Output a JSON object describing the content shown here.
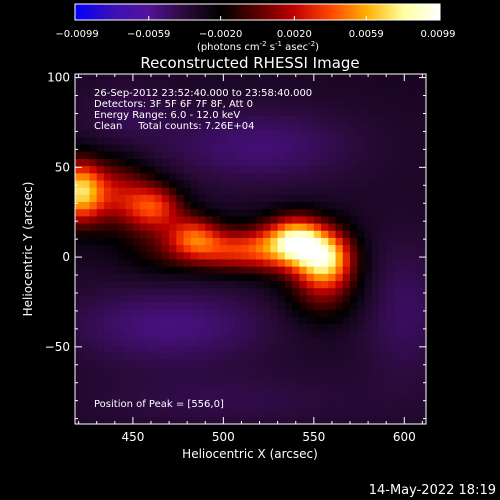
{
  "chart_data": {
    "type": "heatmap",
    "title": "Reconstructed RHESSI Image",
    "xlabel": "Heliocentric X (arcsec)",
    "ylabel": "Heliocentric Y (arcsec)",
    "xlim": [
      418,
      612
    ],
    "ylim": [
      -93,
      102
    ],
    "x_ticks": [
      450,
      500,
      550,
      600
    ],
    "y_ticks": [
      -50,
      0,
      50,
      100
    ],
    "colorbar": {
      "range": [
        -0.0099,
        0.0099
      ],
      "ticks": [
        "-0.0099",
        "-0.0059",
        "-0.0020",
        "0.0020",
        "0.0059",
        "0.0099"
      ],
      "stops": [
        "#0000ff",
        "#3a0fb8",
        "#53139a",
        "#2a0a3a",
        "#000000",
        "#5a0000",
        "#c00000",
        "#ff4500",
        "#ffb000",
        "#ffffa0",
        "#ffffff"
      ]
    },
    "colorbar_units": {
      "prefix": "(photons cm",
      "exp1": "-2",
      "mid1": " s",
      "exp2": "-1",
      "mid2": " asec",
      "exp3": "-2",
      "suffix": ")"
    },
    "info_lines": [
      "26-Sep-2012 23:52:40.000 to 23:58:40.000",
      "Detectors: 3F 5F 6F 7F 8F, Att 0",
      "Energy Range: 6.0 - 12.0 keV",
      "Clean     Total counts: 7.26E+04"
    ],
    "peak_label": "Position of Peak = [556,0]",
    "grid": false,
    "sources": [
      {
        "x": 556,
        "y": 0,
        "amp": 1.0,
        "sx": 11,
        "sy": 11
      },
      {
        "x": 541,
        "y": 10,
        "amp": 0.72,
        "sx": 10,
        "sy": 9
      },
      {
        "x": 530,
        "y": 6,
        "amp": 0.5,
        "sx": 13,
        "sy": 10
      },
      {
        "x": 505,
        "y": 4,
        "amp": 0.52,
        "sx": 16,
        "sy": 8
      },
      {
        "x": 484,
        "y": 12,
        "amp": 0.5,
        "sx": 10,
        "sy": 8
      },
      {
        "x": 462,
        "y": 28,
        "amp": 0.58,
        "sx": 11,
        "sy": 9
      },
      {
        "x": 440,
        "y": 36,
        "amp": 0.45,
        "sx": 14,
        "sy": 13
      },
      {
        "x": 420,
        "y": 37,
        "amp": 0.85,
        "sx": 9,
        "sy": 12
      },
      {
        "x": 555,
        "y": -20,
        "amp": 0.28,
        "sx": 14,
        "sy": 12
      },
      {
        "x": 470,
        "y": 5,
        "amp": 0.22,
        "sx": 18,
        "sy": 10
      }
    ],
    "negative_bands": [
      {
        "x": 470,
        "y": -38,
        "amp": 0.1,
        "sx": 42,
        "sy": 16
      },
      {
        "x": 520,
        "y": 62,
        "amp": 0.09,
        "sx": 40,
        "sy": 16
      },
      {
        "x": 600,
        "y": -30,
        "amp": 0.07,
        "sx": 18,
        "sy": 30
      },
      {
        "x": 445,
        "y": 80,
        "amp": 0.05,
        "sx": 20,
        "sy": 14
      },
      {
        "x": 500,
        "y": -80,
        "amp": 0.05,
        "sx": 60,
        "sy": 12
      }
    ]
  },
  "footer": {
    "timestamp": "14-May-2022 18:19"
  }
}
